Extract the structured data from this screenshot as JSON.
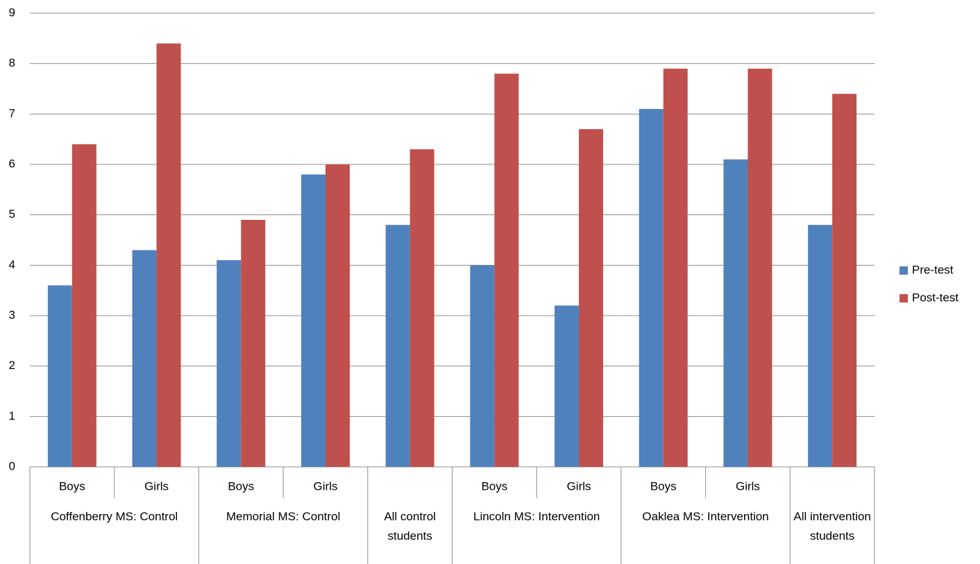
{
  "chart_data": {
    "type": "bar",
    "groups": [
      {
        "name": "Coffenberry MS: Control",
        "categories": [
          "Boys",
          "Girls"
        ]
      },
      {
        "name": "Memorial MS: Control",
        "categories": [
          "Boys",
          "Girls"
        ]
      },
      {
        "name": "All control students",
        "categories": [
          null
        ]
      },
      {
        "name": "Lincoln MS: Intervention",
        "categories": [
          "Boys",
          "Girls"
        ]
      },
      {
        "name": "Oaklea MS: Intervention",
        "categories": [
          "Boys",
          "Girls"
        ]
      },
      {
        "name": "All intervention students",
        "categories": [
          null
        ]
      }
    ],
    "series": [
      {
        "name": "Pre-test",
        "color": "#4f81bd",
        "values": [
          3.6,
          4.3,
          4.1,
          5.8,
          4.8,
          4.0,
          3.2,
          7.1,
          6.1,
          4.8
        ]
      },
      {
        "name": "Post-test",
        "color": "#c0504d",
        "values": [
          6.4,
          8.4,
          4.9,
          6.0,
          6.3,
          7.8,
          6.7,
          7.9,
          7.9,
          7.4
        ]
      }
    ],
    "ylim": [
      0,
      9
    ],
    "yticks": [
      0,
      1,
      2,
      3,
      4,
      5,
      6,
      7,
      8,
      9
    ],
    "grid": true,
    "legend": "right"
  }
}
